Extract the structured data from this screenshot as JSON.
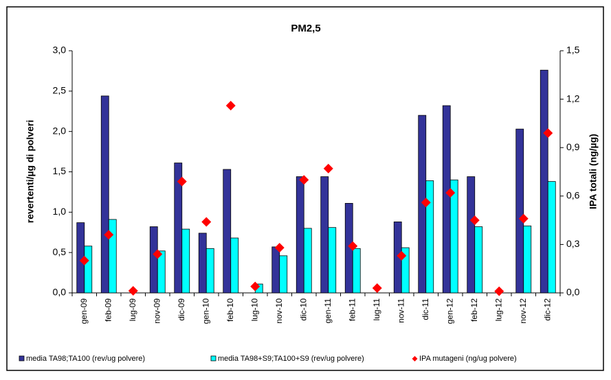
{
  "chart_data": {
    "type": "bar-scatter",
    "title": "PM2,5",
    "ylabel": "revertenti/µg di  polveri",
    "y2label": "IPA totali (ng/µg)",
    "categories": [
      "gen-09",
      "feb-09",
      "lug-09",
      "nov-09",
      "dic-09",
      "gen-10",
      "feb-10",
      "lug-10",
      "nov-10",
      "dic-10",
      "gen-11",
      "feb-11",
      "lug-11",
      "nov-11",
      "dic-11",
      "gen-12",
      "feb-12",
      "lug-12",
      "nov-12",
      "dic-12"
    ],
    "series": [
      {
        "name": "media TA98;TA100 (rev/ug polvere)",
        "color": "#333399",
        "kind": "bar",
        "values": [
          0.87,
          2.44,
          null,
          0.82,
          1.61,
          0.74,
          1.53,
          null,
          0.57,
          1.44,
          1.44,
          1.11,
          null,
          0.88,
          2.2,
          2.32,
          1.44,
          null,
          2.03,
          2.76
        ]
      },
      {
        "name": "media TA98+S9;TA100+S9 (rev/ug polvere)",
        "color": "#00ffff",
        "kind": "bar",
        "values": [
          0.58,
          0.91,
          null,
          0.52,
          0.79,
          0.55,
          0.68,
          0.11,
          0.46,
          0.8,
          0.81,
          0.55,
          null,
          0.56,
          1.39,
          1.4,
          0.82,
          null,
          0.83,
          1.38
        ]
      },
      {
        "name": "IPA mutageni (ng/ug polvere)",
        "color": "#ff0000",
        "kind": "scatter",
        "axis": "y2",
        "values": [
          0.2,
          0.36,
          0.013,
          0.24,
          0.69,
          0.44,
          1.16,
          0.04,
          0.28,
          0.7,
          0.77,
          0.29,
          0.03,
          0.23,
          0.56,
          0.62,
          0.45,
          0.01,
          0.46,
          0.99
        ]
      }
    ],
    "ylim": [
      0,
      3
    ],
    "yticks": [
      {
        "value": 0,
        "label": "0,0"
      },
      {
        "value": 0.5,
        "label": "0,5"
      },
      {
        "value": 1,
        "label": "1,0"
      },
      {
        "value": 1.5,
        "label": "1,5"
      },
      {
        "value": 2,
        "label": "2,0"
      },
      {
        "value": 2.5,
        "label": "2,5"
      },
      {
        "value": 3,
        "label": "3,0"
      }
    ],
    "y2lim": [
      0,
      1.5
    ],
    "y2ticks": [
      {
        "value": 0,
        "label": "0,0"
      },
      {
        "value": 0.3,
        "label": "0,3"
      },
      {
        "value": 0.6,
        "label": "0,6"
      },
      {
        "value": 0.9,
        "label": "0,9"
      },
      {
        "value": 1.2,
        "label": "1,2"
      },
      {
        "value": 1.5,
        "label": "1,5"
      }
    ],
    "grid": false,
    "legend": "bottom"
  }
}
